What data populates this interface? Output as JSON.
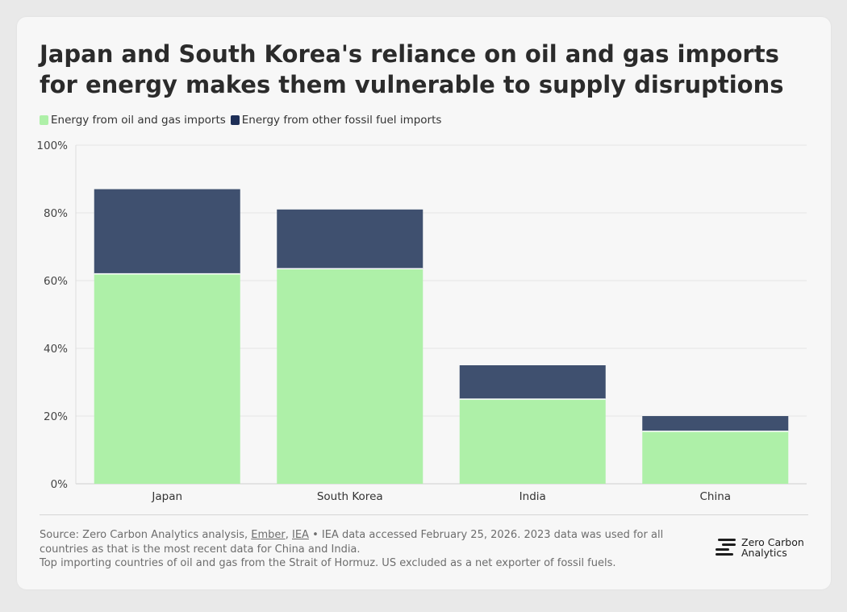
{
  "title": "Japan and South Korea's reliance on oil and gas imports for energy makes them vulnerable to supply disruptions",
  "legend": [
    {
      "label": "Energy from oil and gas imports",
      "color": "#aef0a8"
    },
    {
      "label": "Energy from other fossil fuel imports",
      "color": "#1e2f57"
    }
  ],
  "colors": {
    "oil_gas": "#aef0a8",
    "other_fossil": "#3f506f",
    "legend_other_fossil": "#1e2f57",
    "grid": "#e6e6e6",
    "card_background": "#f7f7f7"
  },
  "chart_data": {
    "type": "bar",
    "stacked": true,
    "categories": [
      "Japan",
      "South Korea",
      "India",
      "China"
    ],
    "series": [
      {
        "name": "Energy from oil and gas imports",
        "values": [
          62,
          63.5,
          25,
          15.5
        ]
      },
      {
        "name": "Energy from other fossil fuel imports",
        "values": [
          25,
          17.5,
          10,
          4.5
        ]
      }
    ],
    "yticks": [
      "0%",
      "20%",
      "40%",
      "60%",
      "80%",
      "100%"
    ],
    "ylim": [
      0,
      100
    ],
    "grid": true,
    "legend_position": "top-left"
  },
  "footer": {
    "source_prefix": "Source: Zero Carbon Analytics analysis, ",
    "link1": "Ember",
    "sep": ", ",
    "link2": "IEA",
    "source_rest": " • IEA data accessed February 25, 2026. 2023 data was used for all countries as that is the most recent data for China and India.",
    "note": "Top importing countries of oil and gas from the Strait of Hormuz. US excluded as a net exporter of fossil fuels."
  },
  "logo": {
    "line1": "Zero Carbon",
    "line2": "Analytics",
    "icon": "zero-carbon-logo-icon"
  }
}
